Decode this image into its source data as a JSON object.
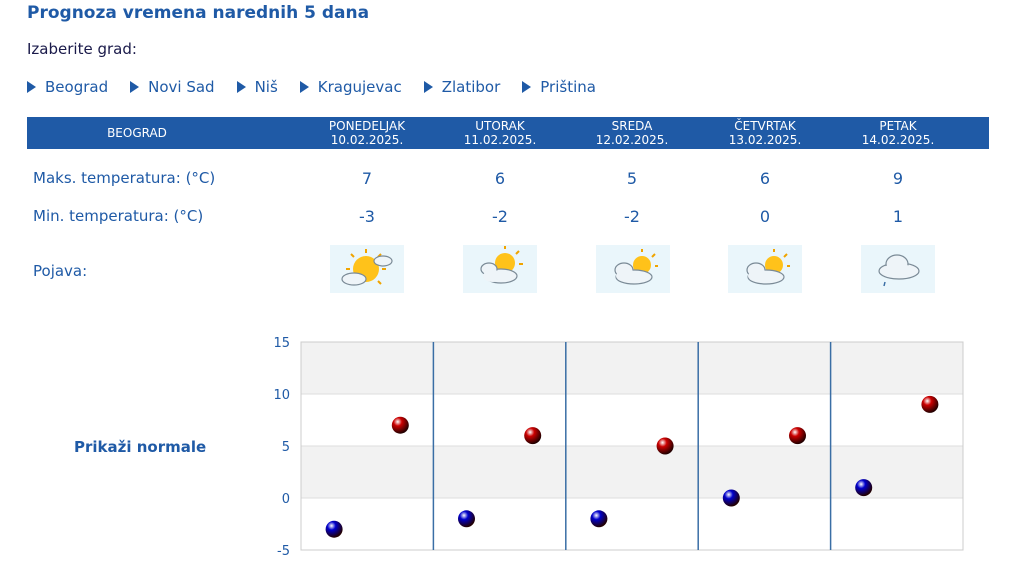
{
  "header": {
    "title": "Prognoza vremena narednih 5 dana"
  },
  "city_select": {
    "label": "Izaberite grad:",
    "cities": [
      "Beograd",
      "Novi Sad",
      "Niš",
      "Kragujevac",
      "Zlatibor",
      "Priština"
    ]
  },
  "table": {
    "city": "BEOGRAD",
    "days": [
      {
        "name": "PONEDELJAK",
        "date": "10.02.2025.",
        "max": "7",
        "min": "-3",
        "icon": "partly-sunny-icon"
      },
      {
        "name": "UTORAK",
        "date": "11.02.2025.",
        "max": "6",
        "min": "-2",
        "icon": "sun-behind-clouds-icon"
      },
      {
        "name": "SREDA",
        "date": "12.02.2025.",
        "max": "5",
        "min": "-2",
        "icon": "cloudy-sun-icon"
      },
      {
        "name": "ČETVRTAK",
        "date": "13.02.2025.",
        "max": "6",
        "min": "0",
        "icon": "cloudy-sun-icon"
      },
      {
        "name": "PETAK",
        "date": "14.02.2025.",
        "max": "9",
        "min": "1",
        "icon": "cloud-light-rain-icon"
      }
    ],
    "labels": {
      "max": "Maks. temperatura: (°C)",
      "min": "Min. temperatura: (°C)",
      "phenomenon": "Pojava:"
    }
  },
  "normals_link": "Prikaži normale",
  "chart_data": {
    "type": "scatter",
    "categories": [
      "PONEDELJAK",
      "UTORAK",
      "SREDA",
      "ČETVRTAK",
      "PETAK"
    ],
    "series": [
      {
        "color": "#cc0000",
        "values": [
          7,
          6,
          5,
          6,
          9
        ]
      },
      {
        "color": "#0000cc",
        "values": [
          -3,
          -2,
          -2,
          0,
          1
        ]
      }
    ],
    "ylim": [
      -5,
      15
    ],
    "yticks": [
      "15",
      "10",
      "5",
      "0",
      "-5"
    ],
    "grid": true
  }
}
